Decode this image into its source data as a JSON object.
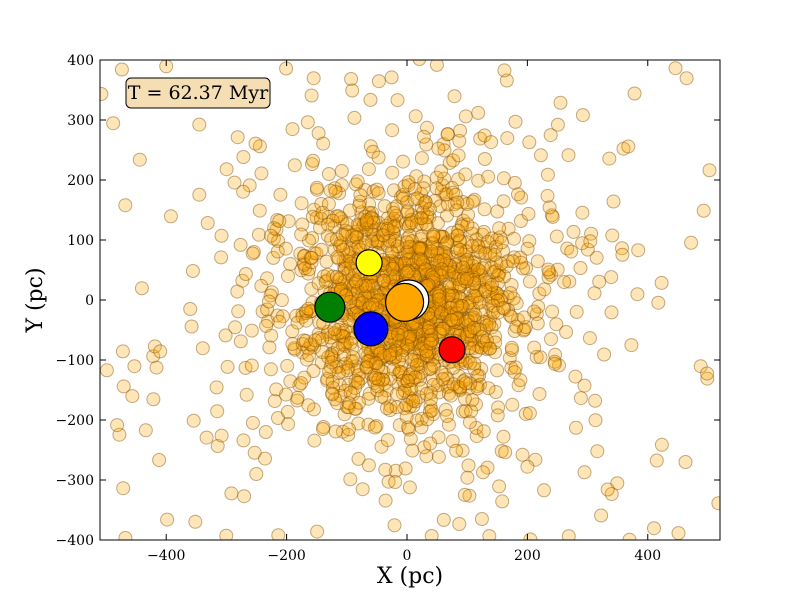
{
  "chart_data": {
    "type": "scatter",
    "title": "",
    "annotation": "T = 62.37 Myr",
    "annotation_style": {
      "fill": "#f5deb3",
      "stroke": "#000000"
    },
    "xlabel": "X (pc)",
    "ylabel": "Y (pc)",
    "xlim": [
      -510,
      520
    ],
    "ylim": [
      -400,
      400
    ],
    "xticks": [
      -400,
      -200,
      0,
      200,
      400
    ],
    "xtick_labels": [
      "−400",
      "−200",
      "0",
      "200",
      "400"
    ],
    "yticks": [
      -400,
      -300,
      -200,
      -100,
      0,
      100,
      200,
      300,
      400
    ],
    "ytick_labels": [
      "−400",
      "−300",
      "−200",
      "−100",
      "0",
      "100",
      "200",
      "300",
      "400"
    ],
    "grid": false,
    "legend": "none",
    "background_stars": {
      "name": "",
      "color": "#ffa500",
      "edge_color": "#7a4a00",
      "opacity": 0.28,
      "count": 1800,
      "core_radius_pc": 90,
      "seed": 6237,
      "note_distribution": "centrally concentrated cluster around (0,0)"
    },
    "highlighted_stars": [
      {
        "x": -63,
        "y": 62,
        "color": "#ffff00"
      },
      {
        "x": 3,
        "y": 0,
        "color": "#ffffff"
      },
      {
        "x": -4,
        "y": -4,
        "color": "#ffa500"
      },
      {
        "x": -128,
        "y": -12,
        "color": "#007f00"
      },
      {
        "x": -60,
        "y": -48,
        "color": "#0000ff"
      },
      {
        "x": 75,
        "y": -83,
        "color": "#ff0000"
      }
    ],
    "highlight_sizes": [
      13,
      20,
      19,
      15,
      17,
      13
    ]
  }
}
